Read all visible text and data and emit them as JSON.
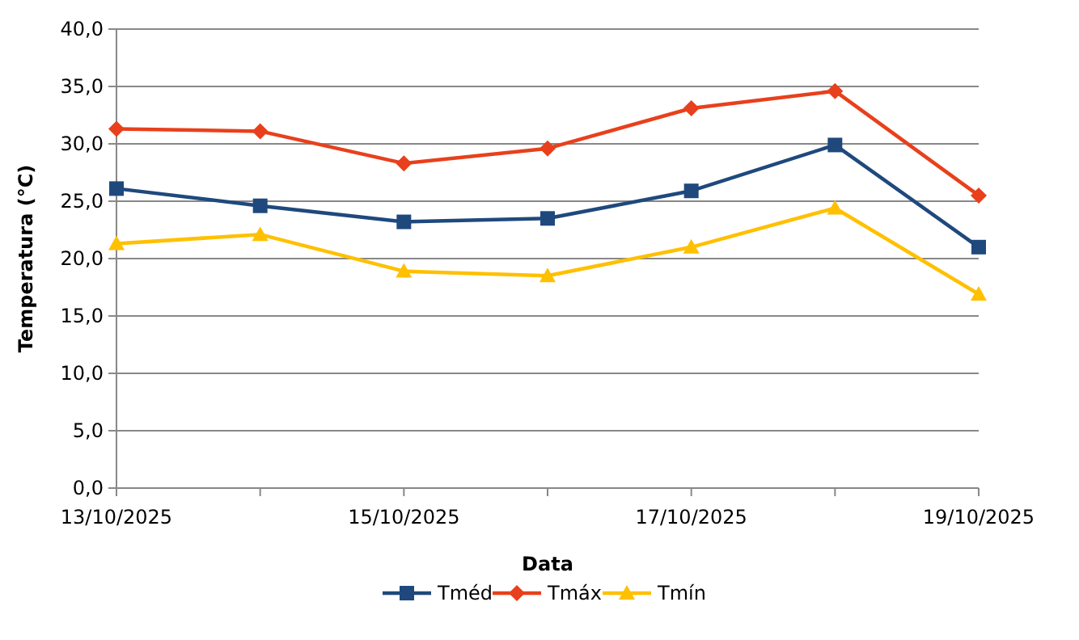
{
  "chart_data": {
    "type": "line",
    "xlabel": "Data",
    "ylabel": "Temperatura (°C)",
    "x": [
      "2025-10-13",
      "2025-10-14",
      "2025-10-15",
      "2025-10-16",
      "2025-10-17",
      "2025-10-18",
      "2025-10-19"
    ],
    "xlim": [
      "2025-10-13",
      "2025-10-19"
    ],
    "xticks": [
      {
        "value": "2025-10-13",
        "label": "13/10/2025"
      },
      {
        "value": "2025-10-14",
        "label": null
      },
      {
        "value": "2025-10-15",
        "label": "15/10/2025"
      },
      {
        "value": "2025-10-16",
        "label": null
      },
      {
        "value": "2025-10-17",
        "label": "17/10/2025"
      },
      {
        "value": "2025-10-18",
        "label": null
      },
      {
        "value": "2025-10-19",
        "label": "19/10/2025"
      }
    ],
    "ylim": [
      0,
      40
    ],
    "yticks": [
      {
        "value": 0,
        "label": "0,0"
      },
      {
        "value": 5,
        "label": "5,0"
      },
      {
        "value": 10,
        "label": "10,0"
      },
      {
        "value": 15,
        "label": "15,0"
      },
      {
        "value": 20,
        "label": "20,0"
      },
      {
        "value": 25,
        "label": "25,0"
      },
      {
        "value": 30,
        "label": "30,0"
      },
      {
        "value": 35,
        "label": "35,0"
      },
      {
        "value": 40,
        "label": "40,0"
      }
    ],
    "grid": "y",
    "legend": "bottom",
    "line_style": "solid",
    "series": [
      {
        "name": "Tméd",
        "color": "#1f497d",
        "marker": "square",
        "values": [
          26.1,
          24.6,
          23.2,
          23.5,
          25.9,
          29.9,
          21.0
        ]
      },
      {
        "name": "Tmáx",
        "color": "#e8401c",
        "marker": "diamond",
        "values": [
          31.3,
          31.1,
          28.3,
          29.6,
          33.1,
          34.6,
          25.5
        ]
      },
      {
        "name": "Tmín",
        "color": "#ffc000",
        "marker": "triangle",
        "values": [
          21.3,
          22.1,
          18.9,
          18.5,
          21.0,
          24.4,
          16.9
        ]
      }
    ]
  }
}
